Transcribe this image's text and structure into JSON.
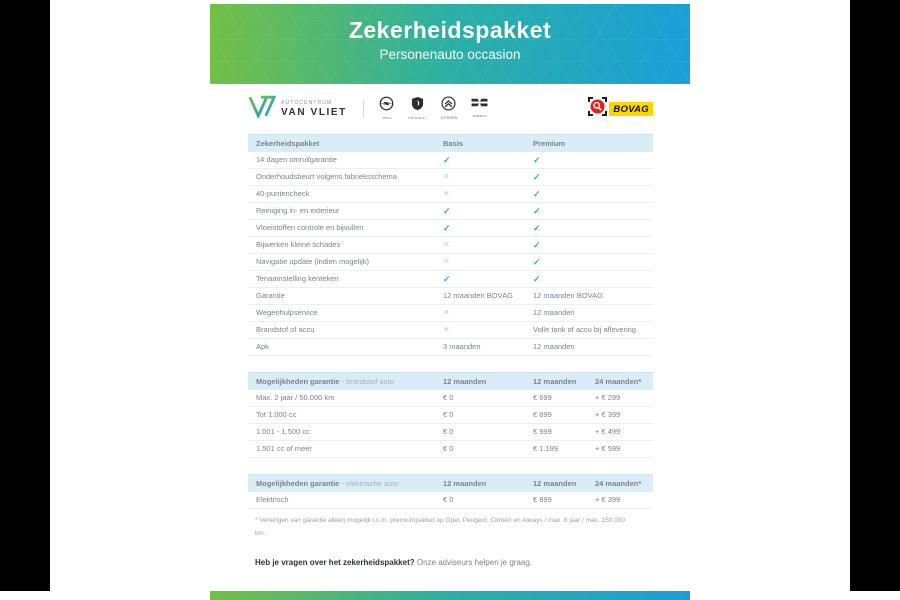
{
  "banner": {
    "title": "Zekerheidspakket",
    "subtitle": "Personenauto occasion"
  },
  "dealer": {
    "name_top": "AUTOCENTRUM",
    "name_bottom": "VAN VLIET",
    "brands": [
      "OPEL",
      "PEUGEOT",
      "CITROËN",
      "AIWAYS"
    ],
    "bovag_label": "BOVAG"
  },
  "icons": {
    "check": "✓",
    "cross": "✕"
  },
  "colors": {
    "accent_green": "#74bf44",
    "accent_blue": "#1b9ed9",
    "check_blue": "#29abe2",
    "header_bg": "#d9edf6",
    "bovag_yellow": "#fdd600",
    "bovag_red": "#e2231a"
  },
  "table1": {
    "headers": [
      "Zekerheidspakket",
      "Basis",
      "Premium"
    ],
    "rows": [
      {
        "label": "14 dagen omruilgarantie",
        "basis": "check",
        "premium": "check"
      },
      {
        "label": "Onderhoudsbeurt volgens fabrieksschema",
        "basis": "cross",
        "premium": "check"
      },
      {
        "label": "40-puntencheck",
        "basis": "cross",
        "premium": "check"
      },
      {
        "label": "Reiniging in- en exterieur",
        "basis": "check",
        "premium": "check"
      },
      {
        "label": "Vloeistoffen controle en bijvullen",
        "basis": "check",
        "premium": "check"
      },
      {
        "label": "Bijwerken kleine schades",
        "basis": "cross",
        "premium": "check"
      },
      {
        "label": "Navigatie update (indien mogelijk)",
        "basis": "cross",
        "premium": "check"
      },
      {
        "label": "Tenaamstelling kenteken",
        "basis": "check",
        "premium": "check"
      },
      {
        "label": "Garantie",
        "basis": "12 maanden BOVAG",
        "premium": "12 maanden BOVAG"
      },
      {
        "label": "Wegenhulpservice",
        "basis": "cross",
        "premium": "12 maanden"
      },
      {
        "label": "Brandstof of accu",
        "basis": "cross",
        "premium": "Volle tank of accu bij aflevering"
      },
      {
        "label": "Apk",
        "basis": "3 maanden",
        "premium": "12 maanden"
      }
    ]
  },
  "table2": {
    "title_bold": "Mogelijkheden garantie",
    "title_light": " - brandstof auto",
    "columns": [
      "12 maanden",
      "12 maanden",
      "24 maanden*"
    ],
    "rows": [
      {
        "label": "Max. 2 jaar / 50.000 km",
        "values": [
          "€ 0",
          "€ 699",
          "+ € 299"
        ]
      },
      {
        "label": "Tot 1.000 cc",
        "values": [
          "€ 0",
          "€ 899",
          "+ € 399"
        ]
      },
      {
        "label": "1.001 - 1.500 cc",
        "values": [
          "€ 0",
          "€ 999",
          "+ € 499"
        ]
      },
      {
        "label": "1.501 cc of meer",
        "values": [
          "€ 0",
          "€ 1.199",
          "+ € 599"
        ]
      }
    ]
  },
  "table3": {
    "title_bold": "Mogelijkheden garantie",
    "title_light": " - elektrische auto",
    "columns": [
      "12 maanden",
      "12 maanden",
      "24 maanden*"
    ],
    "rows": [
      {
        "label": "Elektrisch",
        "values": [
          "€ 0",
          "€ 899",
          "+ € 399"
        ]
      }
    ]
  },
  "footnote": "* Verlengen van garantie alleen mogelijk i.c.m. premiumpakket op Opel, Peugeot, Citroën en Aiways / max. 8 jaar / max. 150.000 km.",
  "question": {
    "bold": "Heb je vragen over het zekerheidspakket?",
    "rest": " Onze adviseurs helpen je graag."
  }
}
